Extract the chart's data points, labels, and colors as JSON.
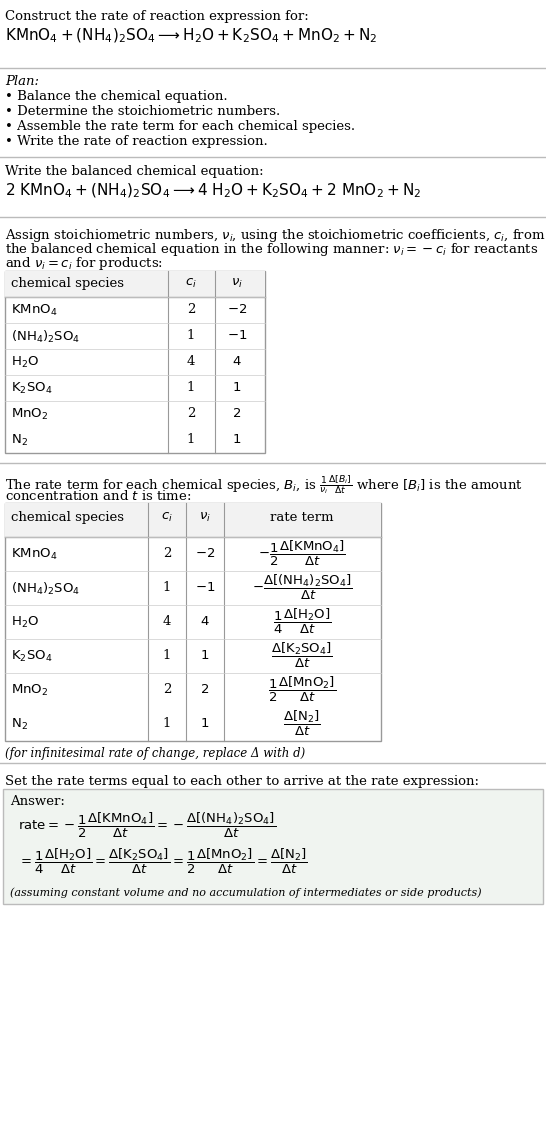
{
  "title_line1": "Construct the rate of reaction expression for:",
  "plan_header": "Plan:",
  "plan_items": [
    "• Balance the chemical equation.",
    "• Determine the stoichiometric numbers.",
    "• Assemble the rate term for each chemical species.",
    "• Write the rate of reaction expression."
  ],
  "balanced_header": "Write the balanced chemical equation:",
  "stoich_intro1": "Assign stoichiometric numbers, $\\nu_i$, using the stoichiometric coefficients, $c_i$, from",
  "stoich_intro2": "the balanced chemical equation in the following manner: $\\nu_i = -c_i$ for reactants",
  "stoich_intro3": "and $\\nu_i = c_i$ for products:",
  "table1_headers": [
    "chemical species",
    "c_i",
    "v_i"
  ],
  "table1_rows": [
    [
      "KMnO_4",
      "2",
      "-2"
    ],
    [
      "(NH_4)_2SO_4",
      "1",
      "-1"
    ],
    [
      "H_2O",
      "4",
      "4"
    ],
    [
      "K_2SO_4",
      "1",
      "1"
    ],
    [
      "MnO_2",
      "2",
      "2"
    ],
    [
      "N_2",
      "1",
      "1"
    ]
  ],
  "rate_intro1": "The rate term for each chemical species, $B_i$, is $\\frac{1}{\\nu_i}\\frac{\\Delta[B_i]}{\\Delta t}$ where $[B_i]$ is the amount",
  "rate_intro2": "concentration and $t$ is time:",
  "table2_headers": [
    "chemical species",
    "c_i",
    "v_i",
    "rate term"
  ],
  "table2_rows": [
    [
      "KMnO_4",
      "2",
      "-2"
    ],
    [
      "(NH_4)_2SO_4",
      "1",
      "-1"
    ],
    [
      "H_2O",
      "4",
      "4"
    ],
    [
      "K_2SO_4",
      "1",
      "1"
    ],
    [
      "MnO_2",
      "2",
      "2"
    ],
    [
      "N_2",
      "1",
      "1"
    ]
  ],
  "infinitesimal_note": "(for infinitesimal rate of change, replace Δ with d)",
  "set_rate_text": "Set the rate terms equal to each other to arrive at the rate expression:",
  "answer_label": "Answer:",
  "answer_note": "(assuming constant volume and no accumulation of intermediates or side products)",
  "bg_color": "#ffffff",
  "line_color": "#bbbbbb",
  "table_border": "#999999",
  "answer_bg": "#f0f4f0"
}
